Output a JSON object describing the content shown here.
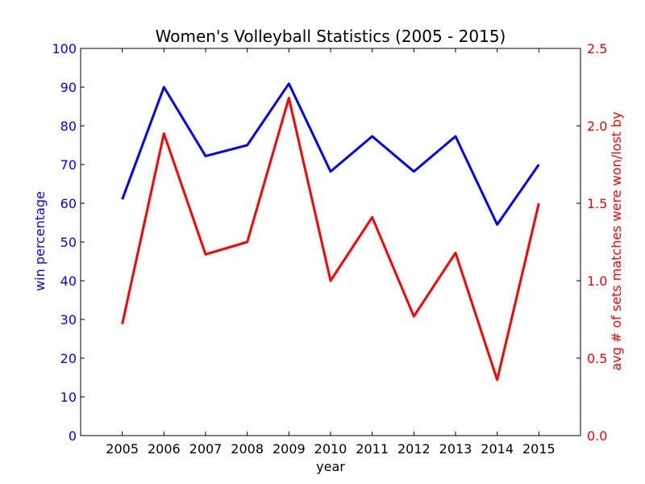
{
  "chart_data": {
    "type": "line",
    "title": "Women's Volleyball Statistics (2005 - 2015)",
    "xlabel": "year",
    "y_left_label": "win percentage",
    "y_right_label": "avg # of sets matches were won/lost by",
    "x": [
      "2005",
      "2006",
      "2007",
      "2008",
      "2009",
      "2010",
      "2011",
      "2012",
      "2013",
      "2014",
      "2015"
    ],
    "xlim": [
      2004,
      2016
    ],
    "y_left_lim": [
      0,
      100
    ],
    "y_left_ticks": [
      "0",
      "10",
      "20",
      "30",
      "40",
      "50",
      "60",
      "70",
      "80",
      "90",
      "100"
    ],
    "y_right_lim": [
      0.0,
      2.5
    ],
    "y_right_ticks": [
      "0.0",
      "0.5",
      "1.0",
      "1.5",
      "2.0",
      "2.5"
    ],
    "grid": false,
    "series": [
      {
        "axis": "left",
        "color": "#0000ff",
        "values": [
          61,
          90,
          72.2,
          75,
          90.9,
          68.2,
          77.3,
          68.2,
          77.3,
          54.5,
          70
        ]
      },
      {
        "axis": "right",
        "color": "#ff0000",
        "values": [
          0.72,
          1.95,
          1.17,
          1.25,
          2.18,
          1.0,
          1.41,
          0.77,
          1.18,
          0.36,
          1.5
        ]
      }
    ]
  }
}
